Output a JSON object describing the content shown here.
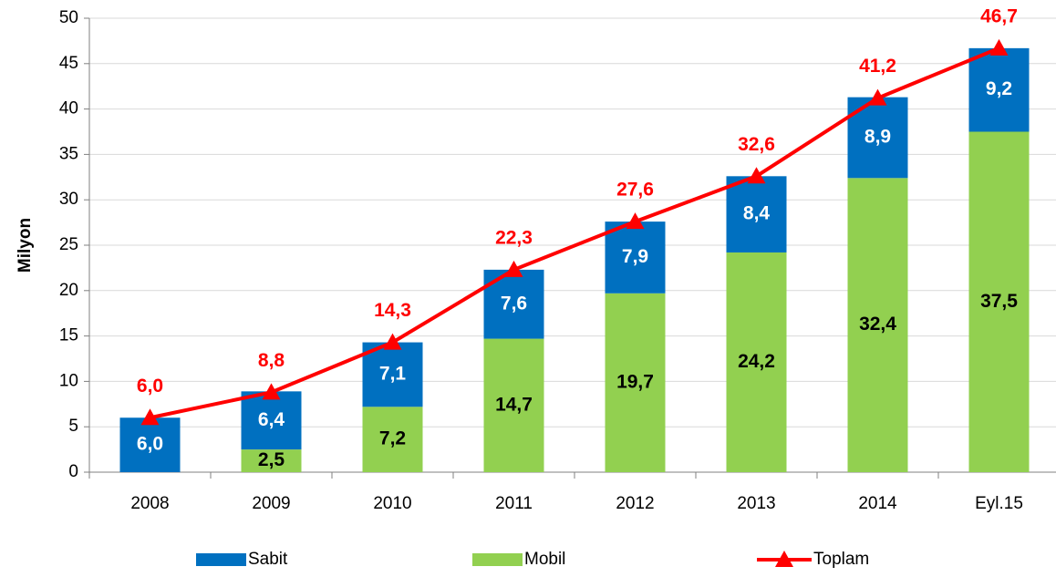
{
  "chart_data": {
    "type": "bar",
    "stacked": true,
    "y_label": "Milyon",
    "categories": [
      "2008",
      "2009",
      "2010",
      "2011",
      "2012",
      "2013",
      "2014",
      "Eyl.15"
    ],
    "series": [
      {
        "name": "Sabit",
        "type": "bar",
        "color": "#0070c0",
        "label_color": "#ffffff",
        "values": [
          6.0,
          6.4,
          7.1,
          7.6,
          7.9,
          8.4,
          8.9,
          9.2
        ],
        "value_labels": [
          "6,0",
          "6,4",
          "7,1",
          "7,6",
          "7,9",
          "8,4",
          "8,9",
          "9,2"
        ]
      },
      {
        "name": "Mobil",
        "type": "bar",
        "color": "#92d050",
        "label_color": "#000000",
        "values": [
          null,
          2.5,
          7.2,
          14.7,
          19.7,
          24.2,
          32.4,
          37.5
        ],
        "value_labels": [
          null,
          "2,5",
          "7,2",
          "14,7",
          "19,7",
          "24,2",
          "32,4",
          "37,5"
        ]
      },
      {
        "name": "Toplam",
        "type": "line",
        "color": "#ff0000",
        "label_color": "#ff0000",
        "values": [
          6.0,
          8.8,
          14.3,
          22.3,
          27.6,
          32.6,
          41.2,
          46.7
        ],
        "value_labels": [
          "6,0",
          "8,8",
          "14,3",
          "22,3",
          "27,6",
          "32,6",
          "41,2",
          "46,7"
        ]
      }
    ],
    "ylim": [
      0,
      50
    ],
    "yticks": [
      0,
      5,
      10,
      15,
      20,
      25,
      30,
      35,
      40,
      45,
      50
    ],
    "grid": true,
    "legend": "bottom"
  }
}
